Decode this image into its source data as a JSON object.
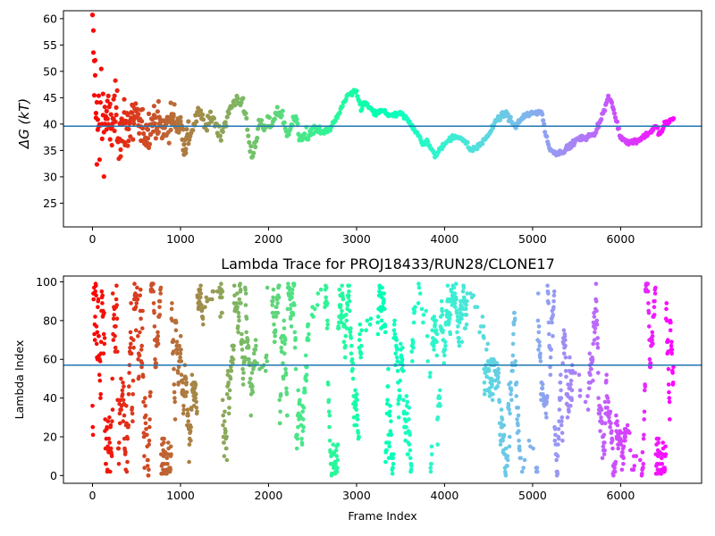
{
  "chart_data": [
    {
      "type": "scatter",
      "title": "",
      "xlabel": "",
      "ylabel": "ΔG (kT)",
      "xlim": [
        -330,
        6920
      ],
      "ylim": [
        20.5,
        61.5
      ],
      "xticks": [
        0,
        1000,
        2000,
        3000,
        4000,
        5000,
        6000
      ],
      "yticks": [
        25,
        30,
        35,
        40,
        45,
        50,
        55,
        60
      ],
      "xticklabels": [
        "0",
        "1000",
        "2000",
        "3000",
        "4000",
        "5000",
        "6000"
      ],
      "yticklabels": [
        "25",
        "30",
        "35",
        "40",
        "45",
        "50",
        "55",
        "60"
      ],
      "colormap": "rainbow (red at frame 0 → violet at last frame)",
      "hline": 39.6,
      "hline_color": "#1f77b4",
      "grid": false,
      "trace_points": [
        [
          0,
          60
        ],
        [
          20,
          50
        ],
        [
          40,
          44
        ],
        [
          60,
          40
        ],
        [
          80,
          36
        ],
        [
          100,
          43
        ],
        [
          130,
          40
        ],
        [
          160,
          42
        ],
        [
          200,
          39
        ],
        [
          250,
          42
        ],
        [
          300,
          39
        ],
        [
          400,
          40
        ],
        [
          500,
          41
        ],
        [
          600,
          38
        ],
        [
          700,
          41
        ],
        [
          800,
          39
        ],
        [
          900,
          41
        ],
        [
          1000,
          40
        ],
        [
          1050,
          36.5
        ],
        [
          1100,
          37.5
        ],
        [
          1150,
          40
        ],
        [
          1200,
          42
        ],
        [
          1250,
          41
        ],
        [
          1300,
          39
        ],
        [
          1350,
          42
        ],
        [
          1400,
          40
        ],
        [
          1450,
          38
        ],
        [
          1500,
          40
        ],
        [
          1550,
          42
        ],
        [
          1600,
          44
        ],
        [
          1650,
          45
        ],
        [
          1700,
          44
        ],
        [
          1750,
          41
        ],
        [
          1780,
          36
        ],
        [
          1820,
          34
        ],
        [
          1850,
          37
        ],
        [
          1900,
          40
        ],
        [
          1950,
          39
        ],
        [
          2000,
          40
        ],
        [
          2050,
          40.5
        ],
        [
          2100,
          42.5
        ],
        [
          2150,
          42
        ],
        [
          2200,
          38
        ],
        [
          2250,
          40
        ],
        [
          2300,
          41
        ],
        [
          2350,
          38
        ],
        [
          2400,
          37
        ],
        [
          2450,
          38
        ],
        [
          2500,
          39
        ],
        [
          2600,
          38.5
        ],
        [
          2700,
          39
        ],
        [
          2800,
          42
        ],
        [
          2900,
          45.5
        ],
        [
          3000,
          46
        ],
        [
          3050,
          43
        ],
        [
          3100,
          44
        ],
        [
          3200,
          42
        ],
        [
          3300,
          42.5
        ],
        [
          3400,
          41.5
        ],
        [
          3500,
          42
        ],
        [
          3600,
          40.5
        ],
        [
          3700,
          38
        ],
        [
          3750,
          36
        ],
        [
          3800,
          37
        ],
        [
          3850,
          35
        ],
        [
          3900,
          34
        ],
        [
          4000,
          36.5
        ],
        [
          4100,
          37.5
        ],
        [
          4200,
          37.5
        ],
        [
          4300,
          35
        ],
        [
          4400,
          36
        ],
        [
          4500,
          38
        ],
        [
          4600,
          41
        ],
        [
          4700,
          42
        ],
        [
          4800,
          39.5
        ],
        [
          4900,
          41.5
        ],
        [
          5000,
          42
        ],
        [
          5100,
          42.5
        ],
        [
          5150,
          38
        ],
        [
          5200,
          35
        ],
        [
          5300,
          34.5
        ],
        [
          5400,
          35.5
        ],
        [
          5500,
          37
        ],
        [
          5600,
          37.5
        ],
        [
          5700,
          38
        ],
        [
          5800,
          42
        ],
        [
          5860,
          45
        ],
        [
          5900,
          44
        ],
        [
          6000,
          37.5
        ],
        [
          6100,
          36.5
        ],
        [
          6200,
          37
        ],
        [
          6300,
          38
        ],
        [
          6400,
          39.5
        ],
        [
          6450,
          38
        ],
        [
          6500,
          40
        ],
        [
          6600,
          41
        ]
      ]
    },
    {
      "type": "scatter",
      "title": "Lambda Trace for PROJ18433/RUN28/CLONE17",
      "xlabel": "Frame Index",
      "ylabel": "Lambda Index",
      "xlim": [
        -330,
        6920
      ],
      "ylim": [
        -4,
        103
      ],
      "xticks": [
        0,
        1000,
        2000,
        3000,
        4000,
        5000,
        6000
      ],
      "yticks": [
        0,
        20,
        40,
        60,
        80,
        100
      ],
      "xticklabels": [
        "0",
        "1000",
        "2000",
        "3000",
        "4000",
        "5000",
        "6000"
      ],
      "yticklabels": [
        "0",
        "20",
        "40",
        "60",
        "80",
        "100"
      ],
      "colormap": "rainbow (red at frame 0 → violet at last frame)",
      "hline": 57,
      "hline_color": "#1f77b4",
      "grid": false,
      "x_range_of_points": [
        0,
        6600
      ],
      "y_range_of_points": [
        0,
        99
      ]
    }
  ]
}
